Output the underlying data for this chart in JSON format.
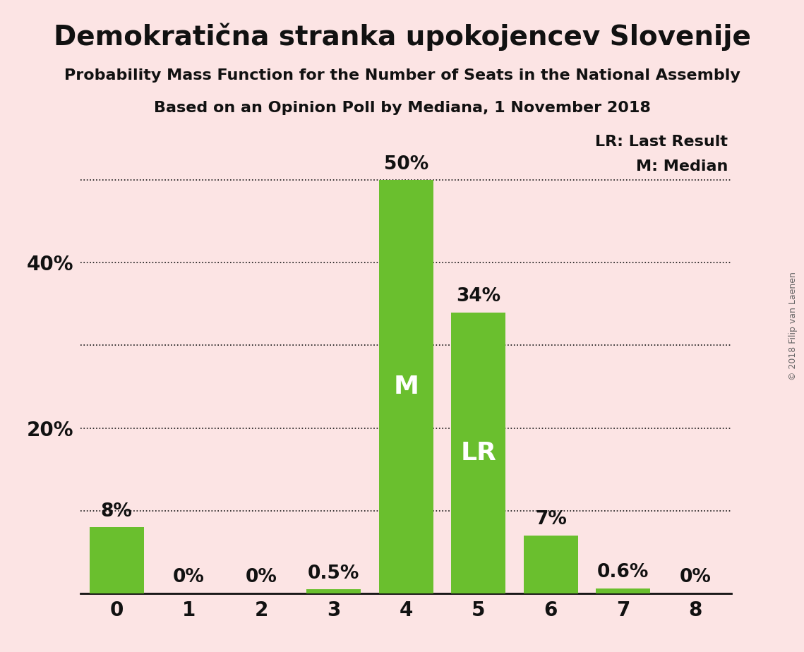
{
  "title": "Demokratična stranka upokojencev Slovenije",
  "subtitle1": "Probability Mass Function for the Number of Seats in the National Assembly",
  "subtitle2": "Based on an Opinion Poll by Mediana, 1 November 2018",
  "copyright": "© 2018 Filip van Laenen",
  "categories": [
    0,
    1,
    2,
    3,
    4,
    5,
    6,
    7,
    8
  ],
  "values": [
    8,
    0,
    0,
    0.5,
    50,
    34,
    7,
    0.6,
    0
  ],
  "bar_labels": [
    "8%",
    "0%",
    "0%",
    "0.5%",
    "50%",
    "34%",
    "7%",
    "0.6%",
    "0%"
  ],
  "bar_color": "#6abf2e",
  "background_color": "#fce4e4",
  "median_bar": 4,
  "lr_bar": 5,
  "median_label": "M",
  "lr_label": "LR",
  "legend_lr": "LR: Last Result",
  "legend_m": "M: Median",
  "ylim": [
    0,
    56
  ],
  "yticks": [
    0,
    20,
    40
  ],
  "ytick_labels": [
    "",
    "20%",
    "40%"
  ],
  "dotted_yticks": [
    10,
    20,
    30,
    40,
    50
  ],
  "title_fontsize": 28,
  "subtitle_fontsize": 16,
  "axis_label_fontsize": 20,
  "bar_label_fontsize": 19,
  "inner_label_fontsize": 26,
  "legend_fontsize": 16,
  "dotted_line_color": "#111111",
  "text_color": "#111111"
}
